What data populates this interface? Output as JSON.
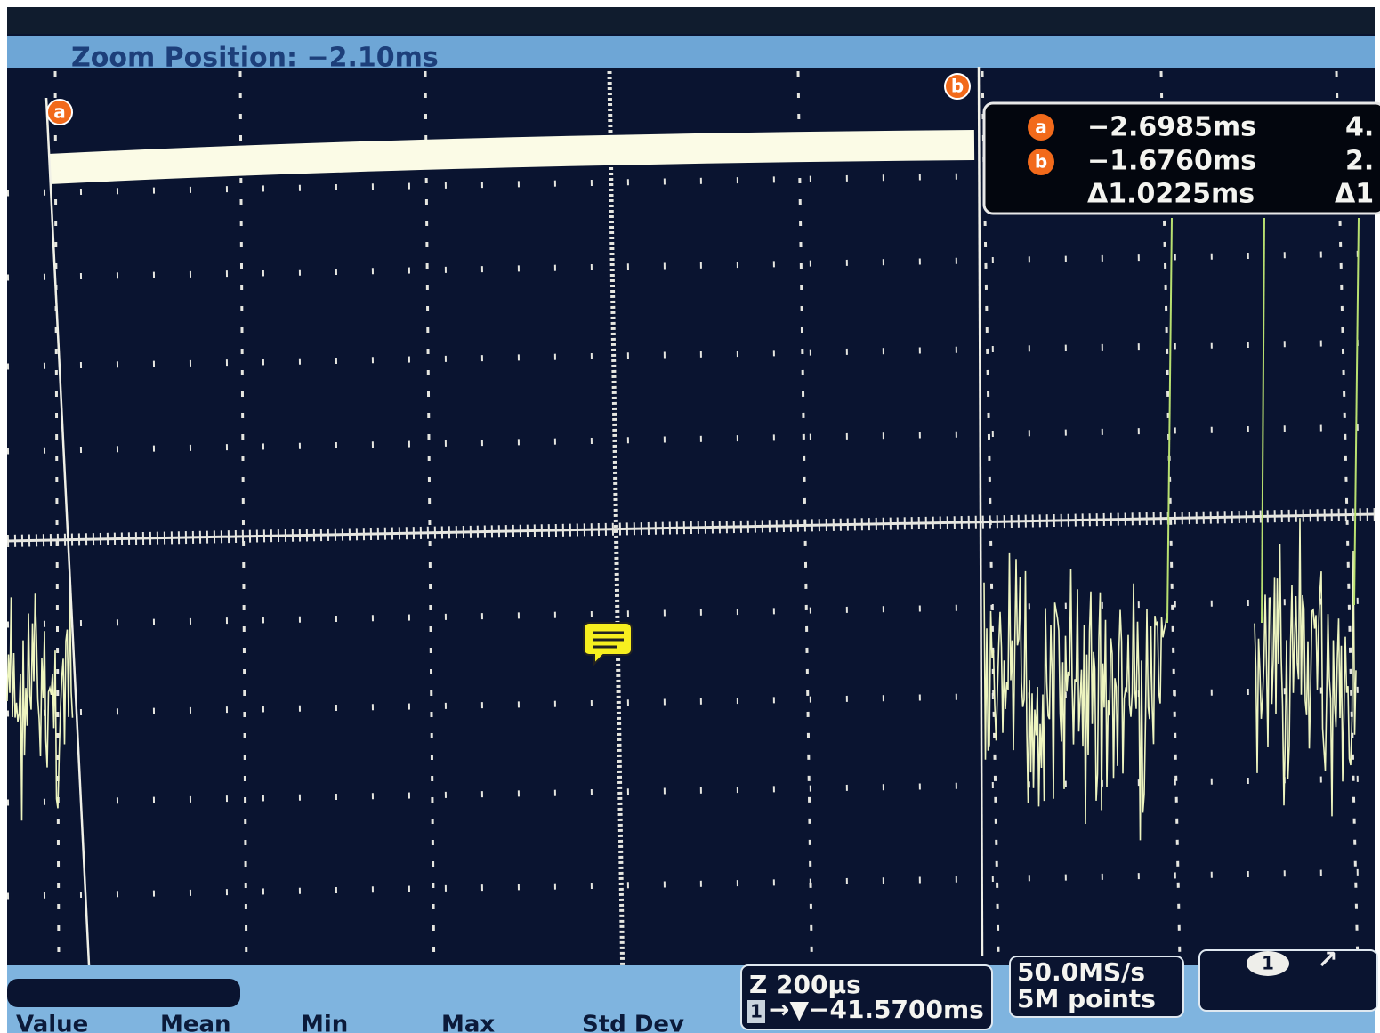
{
  "zoom_position": "Zoom Position: −2.10ms",
  "cursors": {
    "a": {
      "label": "a",
      "time": "−2.6985ms",
      "extra": "4."
    },
    "b": {
      "label": "b",
      "time": "−1.6760ms",
      "extra": "2."
    },
    "delta": {
      "time": "Δ1.0225ms",
      "extra": "Δ1"
    }
  },
  "timebase": {
    "scale": "Z 200µs",
    "channel": "1",
    "position": "→▼−41.5700ms"
  },
  "acquisition": {
    "rate": "50.0MS/s",
    "points": "5M points"
  },
  "trigger": {
    "channel": "1",
    "slope": "↗"
  },
  "measurements": {
    "columns": [
      "Value",
      "Mean",
      "Min",
      "Max",
      "Std Dev"
    ]
  }
}
